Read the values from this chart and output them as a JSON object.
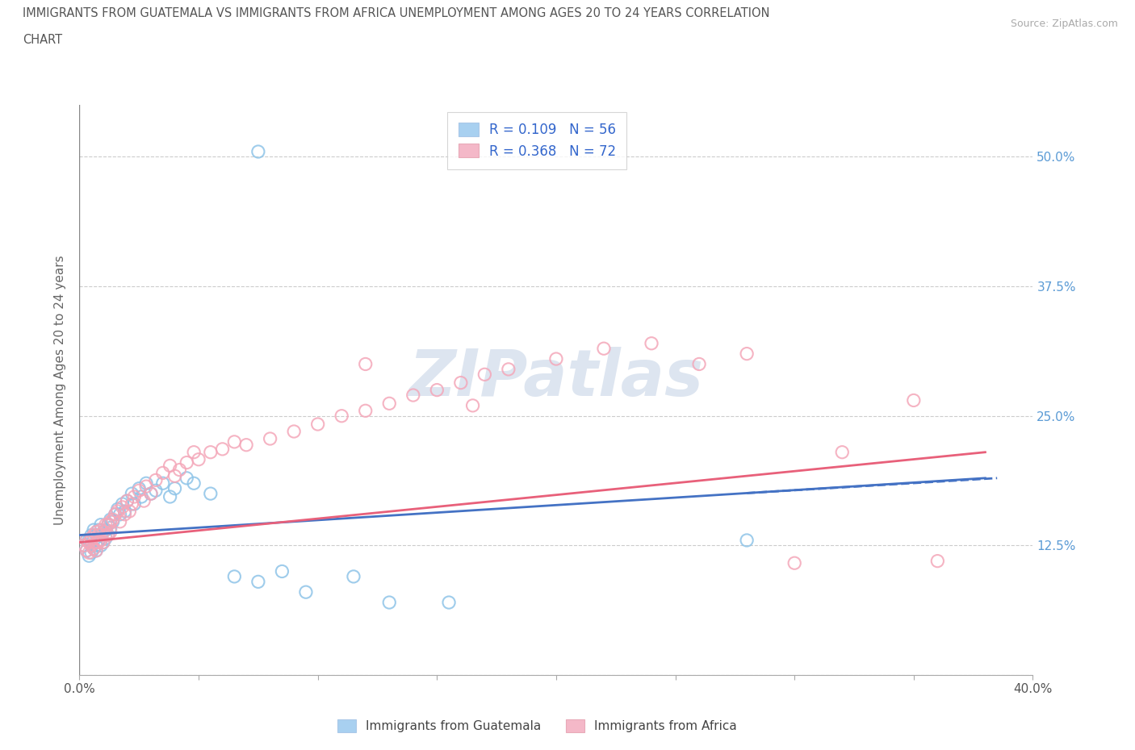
{
  "title_line1": "IMMIGRANTS FROM GUATEMALA VS IMMIGRANTS FROM AFRICA UNEMPLOYMENT AMONG AGES 20 TO 24 YEARS CORRELATION",
  "title_line2": "CHART",
  "source_text": "Source: ZipAtlas.com",
  "ylabel": "Unemployment Among Ages 20 to 24 years",
  "xlim": [
    0.0,
    0.4
  ],
  "ylim": [
    0.0,
    0.55
  ],
  "ytick_positions": [
    0.0,
    0.125,
    0.25,
    0.375,
    0.5
  ],
  "ytick_labels_right": [
    "",
    "12.5%",
    "25.0%",
    "37.5%",
    "50.0%"
  ],
  "color_blue": "#8ec4e8",
  "color_pink": "#f4a7b9",
  "trendline_blue": "#4472c4",
  "trendline_pink": "#e8607a",
  "watermark_text": "ZIPatlas",
  "watermark_color": "#dde5f0",
  "legend_label_blue": "R = 0.109   N = 56",
  "legend_label_pink": "R = 0.368   N = 72",
  "legend_patch_blue": "#a8d0f0",
  "legend_patch_pink": "#f4b8c8",
  "cat_label_blue": "Immigrants from Guatemala",
  "cat_label_pink": "Immigrants from Africa",
  "guatemala_x": [
    0.002,
    0.003,
    0.003,
    0.004,
    0.004,
    0.005,
    0.005,
    0.005,
    0.006,
    0.006,
    0.006,
    0.007,
    0.007,
    0.007,
    0.008,
    0.008,
    0.009,
    0.009,
    0.009,
    0.01,
    0.01,
    0.011,
    0.011,
    0.012,
    0.012,
    0.013,
    0.013,
    0.014,
    0.015,
    0.016,
    0.017,
    0.018,
    0.019,
    0.02,
    0.022,
    0.023,
    0.025,
    0.026,
    0.028,
    0.03,
    0.032,
    0.035,
    0.038,
    0.04,
    0.045,
    0.048,
    0.055,
    0.065,
    0.075,
    0.085,
    0.095,
    0.115,
    0.13,
    0.155,
    0.28,
    0.075
  ],
  "guatemala_y": [
    0.125,
    0.12,
    0.13,
    0.115,
    0.13,
    0.125,
    0.118,
    0.135,
    0.122,
    0.13,
    0.14,
    0.125,
    0.135,
    0.12,
    0.14,
    0.13,
    0.135,
    0.125,
    0.145,
    0.138,
    0.128,
    0.14,
    0.132,
    0.145,
    0.135,
    0.15,
    0.142,
    0.148,
    0.155,
    0.16,
    0.155,
    0.165,
    0.158,
    0.168,
    0.175,
    0.165,
    0.18,
    0.172,
    0.185,
    0.175,
    0.178,
    0.185,
    0.172,
    0.18,
    0.19,
    0.185,
    0.175,
    0.095,
    0.09,
    0.1,
    0.08,
    0.095,
    0.07,
    0.07,
    0.13,
    0.505
  ],
  "africa_x": [
    0.002,
    0.003,
    0.003,
    0.004,
    0.004,
    0.005,
    0.005,
    0.006,
    0.006,
    0.007,
    0.007,
    0.007,
    0.008,
    0.008,
    0.009,
    0.009,
    0.01,
    0.01,
    0.011,
    0.011,
    0.012,
    0.012,
    0.013,
    0.013,
    0.014,
    0.015,
    0.016,
    0.017,
    0.018,
    0.019,
    0.02,
    0.021,
    0.022,
    0.023,
    0.025,
    0.027,
    0.028,
    0.03,
    0.032,
    0.035,
    0.038,
    0.04,
    0.042,
    0.045,
    0.048,
    0.05,
    0.055,
    0.06,
    0.065,
    0.07,
    0.08,
    0.09,
    0.1,
    0.11,
    0.12,
    0.13,
    0.14,
    0.15,
    0.16,
    0.17,
    0.18,
    0.2,
    0.22,
    0.24,
    0.26,
    0.28,
    0.32,
    0.35,
    0.36,
    0.12,
    0.165,
    0.3
  ],
  "africa_y": [
    0.125,
    0.12,
    0.13,
    0.118,
    0.128,
    0.125,
    0.132,
    0.122,
    0.135,
    0.128,
    0.138,
    0.12,
    0.135,
    0.128,
    0.14,
    0.13,
    0.138,
    0.128,
    0.145,
    0.135,
    0.145,
    0.135,
    0.148,
    0.138,
    0.15,
    0.155,
    0.158,
    0.148,
    0.162,
    0.155,
    0.168,
    0.158,
    0.165,
    0.172,
    0.178,
    0.168,
    0.182,
    0.175,
    0.188,
    0.195,
    0.202,
    0.192,
    0.198,
    0.205,
    0.215,
    0.208,
    0.215,
    0.218,
    0.225,
    0.222,
    0.228,
    0.235,
    0.242,
    0.25,
    0.255,
    0.262,
    0.27,
    0.275,
    0.282,
    0.29,
    0.295,
    0.305,
    0.315,
    0.32,
    0.3,
    0.31,
    0.215,
    0.265,
    0.11,
    0.3,
    0.26,
    0.108
  ],
  "trend_blue_x0": 0.0,
  "trend_blue_x1": 0.38,
  "trend_blue_y0": 0.135,
  "trend_blue_y1": 0.19,
  "trend_pink_x0": 0.0,
  "trend_pink_x1": 0.38,
  "trend_pink_y0": 0.128,
  "trend_pink_y1": 0.215
}
